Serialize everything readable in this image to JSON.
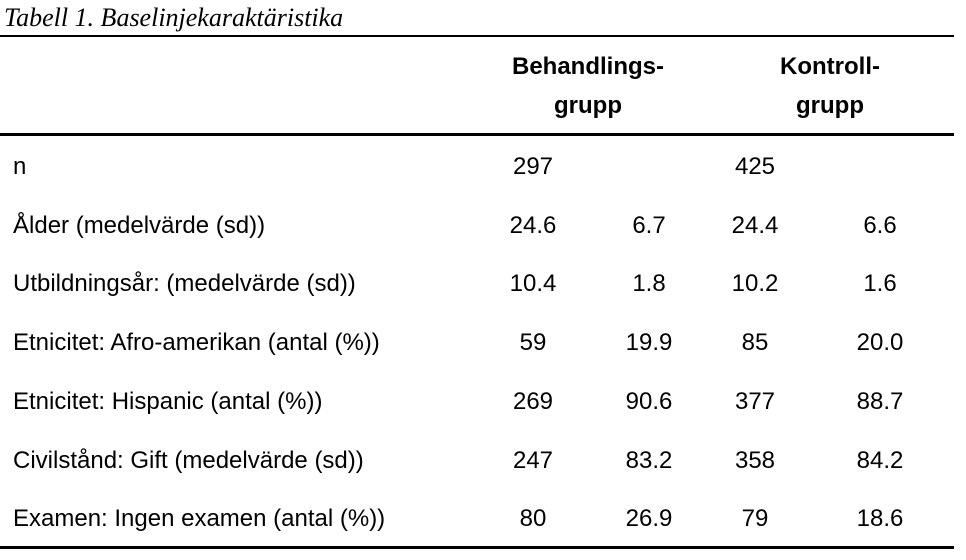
{
  "caption": "Tabell 1. Baselinjekaraktäristika",
  "header": {
    "group1_line1": "Behandlings-",
    "group1_line2": "grupp",
    "group2_line1": "Kontroll-",
    "group2_line2": "grupp"
  },
  "rows": [
    {
      "label": "n",
      "c1": "297",
      "c2": "",
      "c3": "425",
      "c4": ""
    },
    {
      "label": "Ålder (medelvärde (sd))",
      "c1": "24.6",
      "c2": "6.7",
      "c3": "24.4",
      "c4": "6.6"
    },
    {
      "label": "Utbildningsår: (medelvärde (sd))",
      "c1": "10.4",
      "c2": "1.8",
      "c3": "10.2",
      "c4": "1.6"
    },
    {
      "label": "Etnicitet: Afro-amerikan (antal (%))",
      "c1": "59",
      "c2": "19.9",
      "c3": "85",
      "c4": "20.0"
    },
    {
      "label": "Etnicitet: Hispanic (antal (%))",
      "c1": "269",
      "c2": "90.6",
      "c3": "377",
      "c4": "88.7"
    },
    {
      "label": "Civilstånd: Gift (medelvärde (sd))",
      "c1": "247",
      "c2": "83.2",
      "c3": "358",
      "c4": "84.2"
    },
    {
      "label": "Examen: Ingen examen (antal (%))",
      "c1": "80",
      "c2": "26.9",
      "c3": "79",
      "c4": "18.6"
    }
  ]
}
